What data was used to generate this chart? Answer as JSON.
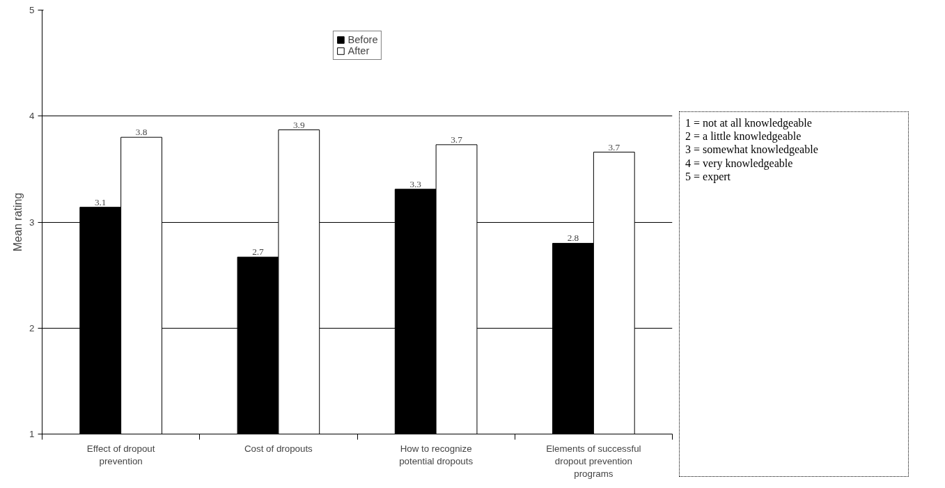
{
  "chart_data": {
    "type": "bar",
    "ylabel": "Mean rating",
    "categories": [
      "Effect of dropout prevention",
      "Cost of dropouts",
      "How to recognize potential dropouts",
      "Elements of successful dropout prevention programs"
    ],
    "series": [
      {
        "name": "Before",
        "color": "#000000",
        "values": [
          3.14,
          2.67,
          3.31,
          2.8
        ],
        "value_labels": [
          "3.1",
          "2.7",
          "3.3",
          "2.8"
        ]
      },
      {
        "name": "After",
        "color": "#ffffff",
        "values": [
          3.8,
          3.87,
          3.73,
          3.66
        ],
        "value_labels": [
          "3.8",
          "3.9",
          "3.7",
          "3.7"
        ]
      }
    ],
    "ylim": [
      1,
      5
    ],
    "yticks": [
      1,
      2,
      3,
      4,
      5
    ],
    "grid": "y",
    "legend": "top",
    "annotations": [
      "1 = not at all knowledgeable",
      "2 = a little knowledgeable",
      "3 = somewhat knowledgeable",
      "4 = very knowledgeable",
      "5 = expert"
    ]
  }
}
